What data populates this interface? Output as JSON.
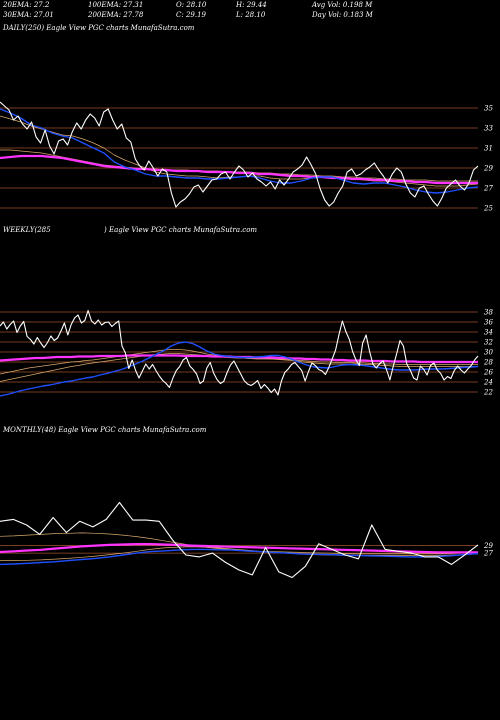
{
  "header": {
    "col1": [
      "20EMA: 27.2",
      "30EMA: 27.01"
    ],
    "col2": [
      "100EMA: 27.31",
      "200EMA: 27.78"
    ],
    "col3": [
      "O: 28.10",
      "C: 29.19"
    ],
    "col4": [
      "H: 29.44",
      "L: 28.10"
    ],
    "col5": [
      "Avg Vol: 0.198  M",
      "Day Vol: 0.183 M"
    ]
  },
  "colors": {
    "background": "#000000",
    "price": "#ffffff",
    "ema_blue": "#1f4fff",
    "ema_magenta": "#ff33ff",
    "ema_thin": "#d9a96b",
    "level_line": "#a0522d"
  },
  "chart_data": [
    {
      "type": "line",
      "label": "DAILY(250) Eagle  View  PGC charts MunafaSutra.com",
      "y_ticks": [
        35,
        33,
        31,
        29,
        27,
        25
      ],
      "ylim": [
        24.2,
        36.2
      ],
      "level_lines": [
        35,
        33,
        31,
        29,
        27,
        25
      ],
      "series": [
        {
          "role": "price",
          "values": [
            35.6,
            35.2,
            34.8,
            33.8,
            34.2,
            33.4,
            32.9,
            33.6,
            32.1,
            31.5,
            32.8,
            31.2,
            30.4,
            31.7,
            31.9,
            31.3,
            32.6,
            33.5,
            32.9,
            33.8,
            34.4,
            34.0,
            33.2,
            34.6,
            34.9,
            33.8,
            32.9,
            33.4,
            32.0,
            31.6,
            29.9,
            29.2,
            28.8,
            29.7,
            29.0,
            28.2,
            28.9,
            28.6,
            26.5,
            25.1,
            25.6,
            25.9,
            26.4,
            27.1,
            27.3,
            26.6,
            27.2,
            27.8,
            27.9,
            28.4,
            28.6,
            27.9,
            28.6,
            29.2,
            28.8,
            28.1,
            28.5,
            27.9,
            27.6,
            27.2,
            27.6,
            26.9,
            27.8,
            27.3,
            27.9,
            28.6,
            28.9,
            29.3,
            30.1,
            29.3,
            28.4,
            26.9,
            25.8,
            25.2,
            25.6,
            26.5,
            27.2,
            28.6,
            28.9,
            28.2,
            28.4,
            28.8,
            29.1,
            29.5,
            28.8,
            28.2,
            27.5,
            28.4,
            29.0,
            28.6,
            27.4,
            26.5,
            26.1,
            27.0,
            27.2,
            26.4,
            25.7,
            25.2,
            26.0,
            27.0,
            27.4,
            27.8,
            27.2,
            26.8,
            27.5,
            28.8,
            29.2
          ]
        },
        {
          "role": "ema",
          "color": "blue",
          "values": [
            34.9,
            34.5,
            34.0,
            33.3,
            33.0,
            32.5,
            32.2,
            32.0,
            31.5,
            31.0,
            30.5,
            29.6,
            29.1,
            28.8,
            28.4,
            28.2,
            28.2,
            28.1,
            28.0,
            28.0,
            27.9,
            27.9,
            28.0,
            28.1,
            28.2,
            28.0,
            27.7,
            27.5,
            27.5,
            27.7,
            28.0,
            28.1,
            28.1,
            27.8,
            27.5,
            27.4,
            27.5,
            27.5,
            27.3,
            27.1,
            26.8,
            26.6,
            26.5,
            26.6,
            26.8,
            27.0,
            27.1
          ]
        },
        {
          "role": "ema",
          "color": "thin",
          "values": [
            34.2,
            33.9,
            33.6,
            33.2,
            32.9,
            32.6,
            32.3,
            32.2,
            31.9,
            31.5,
            31.0,
            30.3,
            29.8,
            29.4,
            29.0,
            28.6,
            28.4,
            28.3,
            28.2,
            28.2,
            28.1,
            28.0,
            28.1,
            28.1,
            28.2,
            28.2,
            28.0,
            27.9,
            27.9,
            27.9,
            28.0,
            28.1,
            28.1,
            28.0,
            27.9,
            27.8,
            27.7,
            27.7,
            27.6,
            27.5,
            27.4,
            27.3,
            27.2,
            27.2,
            27.2,
            27.3,
            27.4
          ]
        },
        {
          "role": "ema",
          "color": "magenta",
          "values": [
            30.0,
            30.1,
            30.2,
            30.2,
            30.2,
            30.1,
            30.0,
            29.8,
            29.6,
            29.4,
            29.2,
            29.1,
            29.0,
            28.9,
            28.9,
            28.8,
            28.8,
            28.7,
            28.7,
            28.7,
            28.6,
            28.6,
            28.6,
            28.5,
            28.5,
            28.4,
            28.4,
            28.3,
            28.2,
            28.2,
            28.1,
            28.1,
            28.0,
            28.0,
            27.9,
            27.9,
            27.8,
            27.8,
            27.7,
            27.7,
            27.6,
            27.6,
            27.5,
            27.5,
            27.5,
            27.5,
            27.5
          ]
        },
        {
          "role": "ema",
          "color": "thin",
          "values": [
            30.8,
            30.8,
            30.7,
            30.6,
            30.5,
            30.3,
            30.1,
            29.9,
            29.7,
            29.5,
            29.3,
            29.2,
            29.1,
            29.0,
            28.9,
            28.9,
            28.8,
            28.8,
            28.8,
            28.7,
            28.7,
            28.7,
            28.6,
            28.6,
            28.6,
            28.5,
            28.5,
            28.4,
            28.4,
            28.3,
            28.3,
            28.2,
            28.2,
            28.1,
            28.1,
            28.0,
            28.0,
            27.9,
            27.9,
            27.8,
            27.8,
            27.8,
            27.7,
            27.7,
            27.7,
            27.7,
            27.7
          ]
        }
      ]
    },
    {
      "type": "line",
      "label_left": "WEEKLY(285",
      "label_right": ") Eagle  View  PGC charts MunafaSutra.com",
      "y_ticks": [
        38,
        36,
        34,
        32,
        30,
        28,
        26,
        24,
        22
      ],
      "ylim": [
        20.8,
        39.2
      ],
      "level_lines": [
        38,
        36,
        34,
        32,
        30,
        28,
        26,
        24,
        22
      ],
      "series": [
        {
          "role": "price",
          "values": [
            35.2,
            36.0,
            34.6,
            35.5,
            36.2,
            33.9,
            35.2,
            36.1,
            33.1,
            32.5,
            31.6,
            32.9,
            31.8,
            30.9,
            31.9,
            33.2,
            32.3,
            32.8,
            34.2,
            35.8,
            33.4,
            35.5,
            36.8,
            37.4,
            35.8,
            36.3,
            38.3,
            36.2,
            35.6,
            36.4,
            35.4,
            35.9,
            36.0,
            35.1,
            35.7,
            36.2,
            31.2,
            29.8,
            26.7,
            28.4,
            26.3,
            24.8,
            26.2,
            27.6,
            26.6,
            27.5,
            26.3,
            25.2,
            24.3,
            23.7,
            22.9,
            24.8,
            26.3,
            27.1,
            28.4,
            28.9,
            27.2,
            26.5,
            25.6,
            23.7,
            24.2,
            26.8,
            27.9,
            25.8,
            24.5,
            23.7,
            24.1,
            25.9,
            27.4,
            28.2,
            26.9,
            25.6,
            24.3,
            23.6,
            23.3,
            23.7,
            24.3,
            22.7,
            23.5,
            22.8,
            21.9,
            22.6,
            21.4,
            24.2,
            25.9,
            26.6,
            27.5,
            27.9,
            27.1,
            26.3,
            24.2,
            26.1,
            27.8,
            27.3,
            26.5,
            26.2,
            25.5,
            26.9,
            28.6,
            30.4,
            33.5,
            36.2,
            34.1,
            32.6,
            30.1,
            28.4,
            27.3,
            31.8,
            33.4,
            30.2,
            27.6,
            26.8,
            27.7,
            28.2,
            26.5,
            24.4,
            27.1,
            29.6,
            32.3,
            31.2,
            27.6,
            26.4,
            24.8,
            24.4,
            27.2,
            26.5,
            25.4,
            27.3,
            27.8,
            26.4,
            25.7,
            24.4,
            25.1,
            24.7,
            26.3,
            27.2,
            26.4,
            25.8,
            26.6,
            27.3,
            28.4,
            29.2
          ]
        },
        {
          "role": "ema",
          "color": "blue",
          "values": [
            21.2,
            21.5,
            21.9,
            22.3,
            22.6,
            22.9,
            23.2,
            23.4,
            23.7,
            24.0,
            24.2,
            24.5,
            24.8,
            25.0,
            25.4,
            25.7,
            26.1,
            26.5,
            27.0,
            27.6,
            28.2,
            28.9,
            29.6,
            30.3,
            31.2,
            31.8,
            32.0,
            31.7,
            31.0,
            30.2,
            29.6,
            29.3,
            29.1,
            29.0,
            28.9,
            28.9,
            29.0,
            29.1,
            29.3,
            29.3,
            29.0,
            28.5,
            27.9,
            27.4,
            27.0,
            26.9,
            26.8,
            27.1,
            27.4,
            27.5,
            27.4,
            27.3,
            27.1,
            26.9,
            26.7,
            26.5,
            26.4,
            26.4,
            26.4,
            26.5,
            26.6,
            26.6,
            26.6,
            26.7,
            26.8,
            26.9,
            27.0,
            27.1
          ]
        },
        {
          "role": "ema",
          "color": "magenta",
          "values": [
            28.3,
            28.4,
            28.5,
            28.6,
            28.7,
            28.8,
            28.8,
            28.9,
            29.0,
            29.0,
            29.0,
            29.1,
            29.1,
            29.1,
            29.2,
            29.2,
            29.2,
            29.2,
            29.3,
            29.3,
            29.3,
            29.3,
            29.3,
            29.3,
            29.3,
            29.3,
            29.2,
            29.2,
            29.2,
            29.2,
            29.1,
            29.1,
            29.1,
            29.0,
            29.0,
            29.0,
            28.9,
            28.9,
            28.9,
            28.8,
            28.8,
            28.7,
            28.7,
            28.6,
            28.6,
            28.5,
            28.5,
            28.4,
            28.4,
            28.3,
            28.3,
            28.3,
            28.2,
            28.2,
            28.2,
            28.1,
            28.1,
            28.1,
            28.1,
            28.0,
            28.0,
            28.0,
            28.0,
            28.0,
            28.0,
            28.0,
            28.0,
            28.0
          ]
        },
        {
          "role": "ema",
          "color": "thin",
          "values": [
            25.6,
            25.9,
            26.2,
            26.5,
            26.8,
            27.0,
            27.2,
            27.4,
            27.6,
            27.8,
            28.0,
            28.1,
            28.3,
            28.4,
            28.6,
            28.8,
            29.0,
            29.2,
            29.4,
            29.6,
            29.8,
            30.0,
            30.2,
            30.4,
            30.5,
            30.5,
            30.4,
            30.2,
            29.9,
            29.6,
            29.4,
            29.2,
            29.0,
            28.9,
            28.8,
            28.7,
            28.6,
            28.6,
            28.6,
            28.5,
            28.4,
            28.3,
            28.1,
            27.9,
            27.8,
            27.7,
            27.6,
            27.6,
            27.6,
            27.6,
            27.6,
            27.5,
            27.5,
            27.4,
            27.3,
            27.2,
            27.1,
            27.1,
            27.1,
            27.1,
            27.1,
            27.1,
            27.1,
            27.1,
            27.1,
            27.1,
            27.1,
            27.1
          ]
        },
        {
          "role": "ema",
          "color": "thin",
          "values": [
            24.1,
            24.4,
            24.7,
            25.0,
            25.3,
            25.6,
            25.9,
            26.2,
            26.5,
            26.8,
            27.1,
            27.3,
            27.6,
            27.8,
            28.0,
            28.2,
            28.4,
            28.6,
            28.8,
            29.0,
            29.2,
            29.4,
            29.5,
            29.6,
            29.7,
            29.7,
            29.6,
            29.5,
            29.4,
            29.2,
            29.1,
            29.0,
            28.9,
            28.8,
            28.8,
            28.7,
            28.7,
            28.7,
            28.6,
            28.6,
            28.5,
            28.4,
            28.3,
            28.2,
            28.1,
            28.0,
            28.0,
            27.9,
            27.9,
            27.9,
            27.8,
            27.8,
            27.7,
            27.7,
            27.6,
            27.6,
            27.5,
            27.5,
            27.5,
            27.5,
            27.5,
            27.5,
            27.5,
            27.5,
            27.5,
            27.5,
            27.5,
            27.5
          ]
        }
      ]
    },
    {
      "type": "line",
      "label": "MONTHLY(48) Eagle  View  PGC charts MunafaSutra.com",
      "y_ticks": [
        29,
        27
      ],
      "ylim": [
        14.5,
        38.5
      ],
      "level_lines": [
        29,
        27
      ],
      "series": [
        {
          "role": "price",
          "values": [
            35.5,
            36.0,
            34.5,
            32.0,
            36.5,
            32.5,
            35.5,
            34.0,
            36.0,
            40.5,
            35.8,
            35.8,
            35.5,
            30.5,
            26.5,
            26.0,
            27.0,
            24.5,
            22.5,
            21.2,
            28.5,
            22.0,
            20.5,
            23.5,
            29.5,
            28.0,
            26.5,
            25.5,
            34.5,
            28.0,
            27.5,
            27.0,
            26.0,
            26.0,
            24.0,
            26.5,
            29.2
          ]
        },
        {
          "role": "ema",
          "color": "blue",
          "values": [
            24.0,
            24.1,
            24.3,
            24.5,
            24.7,
            25.0,
            25.3,
            25.6,
            26.0,
            26.5,
            27.0,
            27.4,
            27.6,
            27.8,
            28.0,
            28.0,
            27.9,
            27.8,
            27.6,
            27.4,
            27.2,
            27.0,
            26.8,
            26.7,
            26.6,
            26.5,
            26.4,
            26.3,
            26.2,
            26.1,
            26.0,
            26.0,
            26.1,
            26.3,
            26.6,
            26.9
          ]
        },
        {
          "role": "ema",
          "color": "magenta",
          "values": [
            27.3,
            27.5,
            27.7,
            27.9,
            28.2,
            28.5,
            28.8,
            29.0,
            29.2,
            29.3,
            29.4,
            29.4,
            29.3,
            29.2,
            29.0,
            28.9,
            28.8,
            28.7,
            28.6,
            28.5,
            28.4,
            28.3,
            28.2,
            28.1,
            28.0,
            27.9,
            27.8,
            27.7,
            27.6,
            27.5,
            27.4,
            27.3,
            27.2,
            27.2,
            27.2,
            27.2
          ]
        },
        {
          "role": "ema",
          "color": "thin",
          "values": [
            31.5,
            31.6,
            31.8,
            32.0,
            32.2,
            32.3,
            32.4,
            32.3,
            32.1,
            31.8,
            31.4,
            30.9,
            30.3,
            29.7,
            29.1,
            28.6,
            28.2,
            27.9,
            27.7,
            27.5,
            27.4,
            27.3,
            27.2,
            27.1,
            27.0,
            26.9,
            26.8,
            26.8,
            26.8,
            26.8,
            26.8,
            26.8,
            26.8,
            26.9,
            27.0,
            27.1
          ]
        },
        {
          "role": "ema",
          "color": "thin",
          "values": [
            25.0,
            25.0,
            25.1,
            25.2,
            25.4,
            25.6,
            25.9,
            26.2,
            26.6,
            27.0,
            27.5,
            28.0,
            28.4,
            28.6,
            28.7,
            28.6,
            28.4,
            28.1,
            27.8,
            27.5,
            27.2,
            27.0,
            26.8,
            26.6,
            26.5,
            26.4,
            26.4,
            26.4,
            26.4,
            26.4,
            26.4,
            26.4,
            26.4,
            26.5,
            26.6,
            26.8
          ]
        }
      ]
    }
  ]
}
